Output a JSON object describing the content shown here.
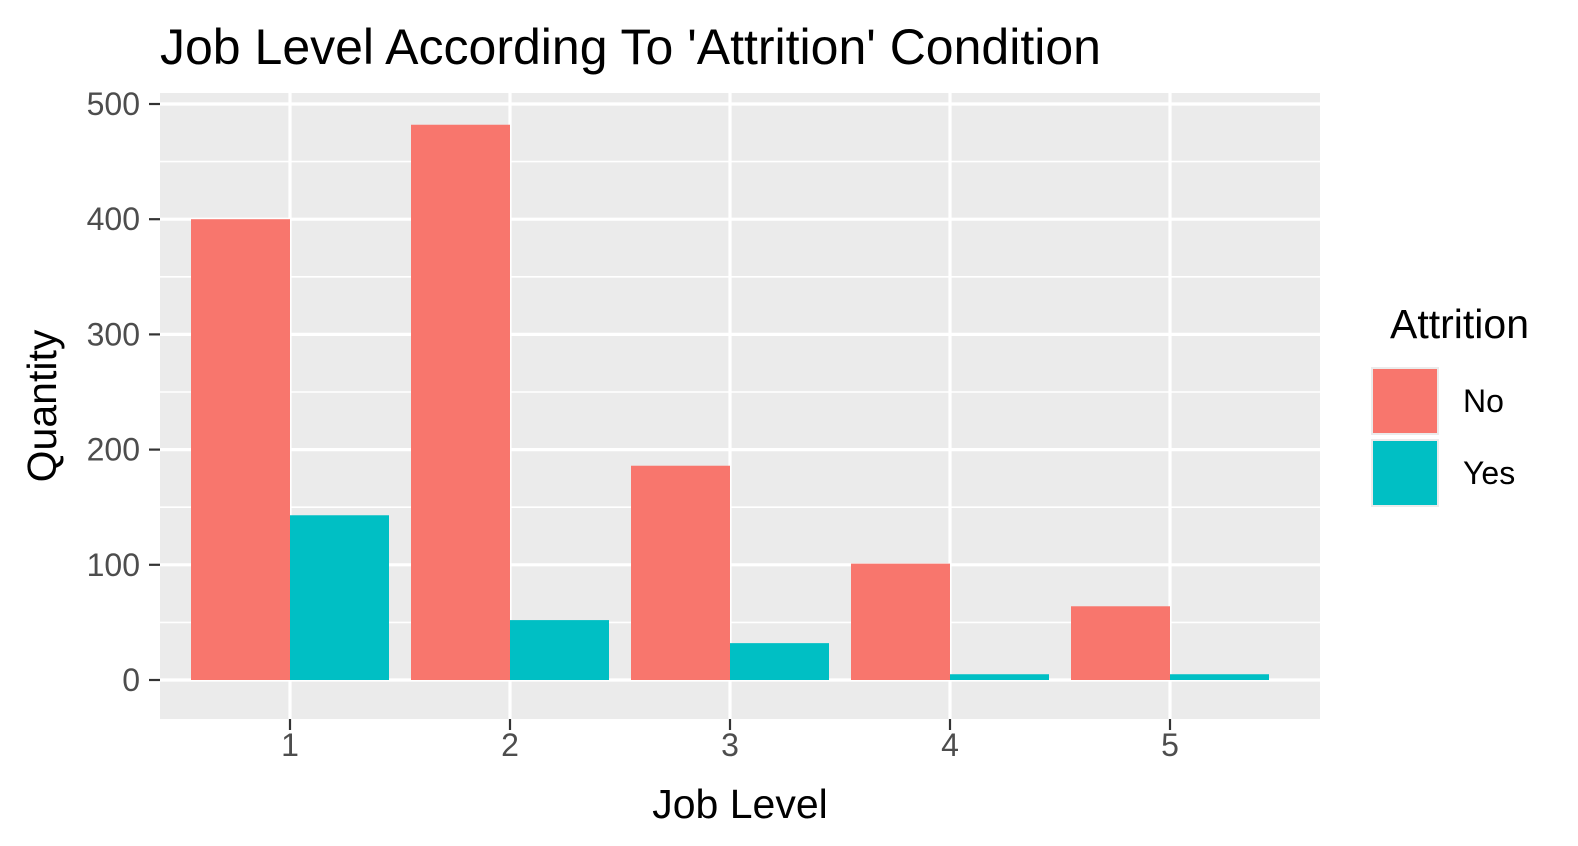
{
  "chart_data": {
    "type": "bar",
    "title": "Job Level According To 'Attrition' Condition",
    "xlabel": "Job Level",
    "ylabel": "Quantity",
    "categories": [
      "1",
      "2",
      "3",
      "4",
      "5"
    ],
    "series": [
      {
        "name": "No",
        "values": [
          400,
          482,
          186,
          101,
          64
        ],
        "color": "#F8766D"
      },
      {
        "name": "Yes",
        "values": [
          143,
          52,
          32,
          5,
          5
        ],
        "color": "#00BFC4"
      }
    ],
    "ylim": [
      0,
      500
    ],
    "yticks": [
      "0",
      "100",
      "200",
      "300",
      "400",
      "500"
    ],
    "grid": true,
    "legend": {
      "title": "Attrition",
      "position": "right"
    },
    "colors": {
      "panel": "#EBEBEB",
      "grid": "#FFFFFF",
      "tick": "#333333"
    }
  }
}
